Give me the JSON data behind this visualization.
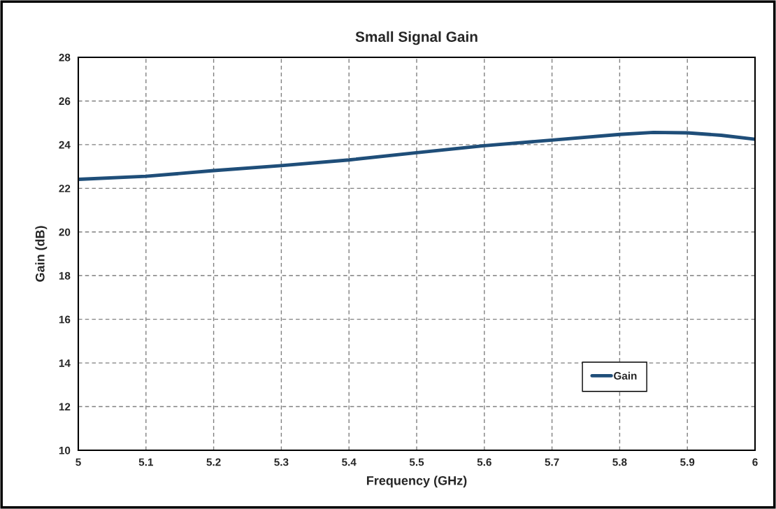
{
  "chart_data": {
    "type": "line",
    "title": "Small Signal Gain",
    "xlabel": "Frequency (GHz)",
    "ylabel": "Gain (dB)",
    "x": [
      5,
      5.1,
      5.2,
      5.3,
      5.4,
      5.5,
      5.6,
      5.7,
      5.8,
      5.85,
      5.9,
      5.95,
      6
    ],
    "series": [
      {
        "name": "Gain",
        "color": "#1f4e79",
        "values": [
          22.41,
          22.55,
          22.81,
          23.04,
          23.3,
          23.63,
          23.95,
          24.21,
          24.47,
          24.56,
          24.54,
          24.43,
          24.25
        ]
      }
    ],
    "xlim": [
      5,
      6
    ],
    "xticks": [
      5,
      5.1,
      5.2,
      5.3,
      5.4,
      5.5,
      5.6,
      5.7,
      5.8,
      5.9,
      6
    ],
    "ylim": [
      10,
      28
    ],
    "yticks": [
      10,
      12,
      14,
      16,
      18,
      20,
      22,
      24,
      26,
      28
    ],
    "grid": true,
    "legend": "bottom right",
    "line_style": "solid",
    "marker": "none"
  }
}
